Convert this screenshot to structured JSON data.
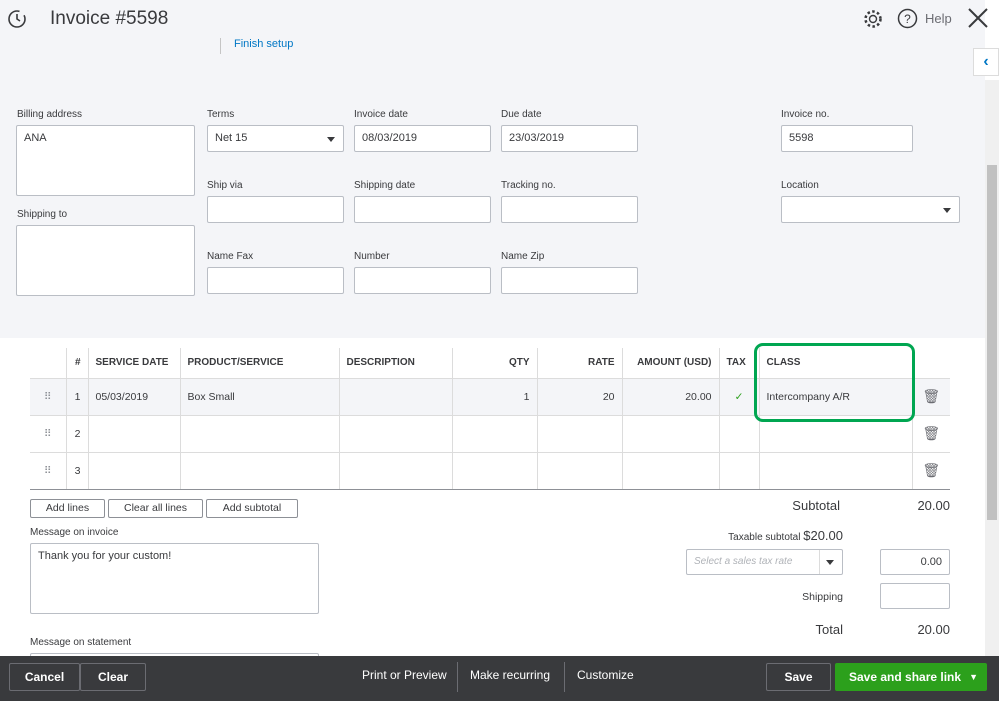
{
  "header": {
    "title": "Invoice #5598",
    "help_label": "Help",
    "finish_setup": "Finish setup"
  },
  "form": {
    "billing_address_label": "Billing address",
    "billing_address": "ANA",
    "shipping_to_label": "Shipping to",
    "shipping_to": "",
    "terms_label": "Terms",
    "terms": "Net 15",
    "invoice_date_label": "Invoice date",
    "invoice_date": "08/03/2019",
    "due_date_label": "Due date",
    "due_date": "23/03/2019",
    "invoice_no_label": "Invoice no.",
    "invoice_no": "5598",
    "ship_via_label": "Ship via",
    "shipping_date_label": "Shipping date",
    "tracking_no_label": "Tracking no.",
    "location_label": "Location",
    "name_fax_label": "Name Fax",
    "number_label": "Number",
    "name_zip_label": "Name Zip"
  },
  "table": {
    "headers": [
      "#",
      "SERVICE DATE",
      "PRODUCT/SERVICE",
      "DESCRIPTION",
      "QTY",
      "RATE",
      "AMOUNT (USD)",
      "TAX",
      "CLASS"
    ],
    "rows": [
      {
        "n": "1",
        "date": "05/03/2019",
        "product": "Box Small",
        "description": "",
        "qty": "1",
        "rate": "20",
        "amount": "20.00",
        "tax": "✓",
        "class": "Intercompany A/R"
      },
      {
        "n": "2"
      },
      {
        "n": "3"
      }
    ]
  },
  "buttons": {
    "add_lines": "Add lines",
    "clear_all_lines": "Clear all lines",
    "add_subtotal": "Add subtotal"
  },
  "message_on_invoice_label": "Message on invoice",
  "message_on_invoice": "Thank you for your custom!",
  "message_on_statement_label": "Message on statement",
  "totals": {
    "subtotal_label": "Subtotal",
    "subtotal": "20.00",
    "taxable_subtotal_label": "Taxable subtotal",
    "taxable_subtotal": "$20.00",
    "tax_rate_placeholder": "Select a sales tax rate",
    "tax_amount": "0.00",
    "shipping_label": "Shipping",
    "total_label": "Total",
    "total": "20.00"
  },
  "footer": {
    "cancel": "Cancel",
    "clear": "Clear",
    "print_preview": "Print or Preview",
    "make_recurring": "Make recurring",
    "customize": "Customize",
    "save": "Save",
    "save_share": "Save and share link"
  },
  "colors": {
    "highlight": "#00a651",
    "primary": "#2ca01c",
    "footer_bg": "#393a3d",
    "link": "#0077c5"
  }
}
